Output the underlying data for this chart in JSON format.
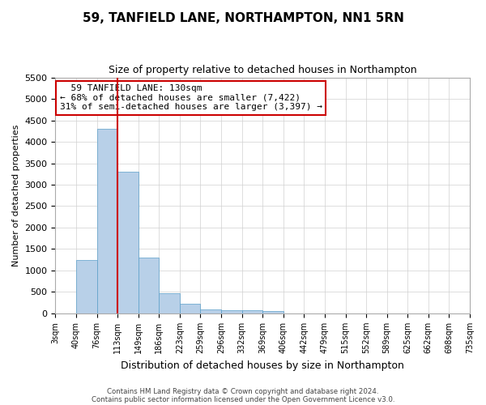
{
  "title": "59, TANFIELD LANE, NORTHAMPTON, NN1 5RN",
  "subtitle": "Size of property relative to detached houses in Northampton",
  "xlabel": "Distribution of detached houses by size in Northampton",
  "ylabel": "Number of detached properties",
  "footer_line1": "Contains HM Land Registry data © Crown copyright and database right 2024.",
  "footer_line2": "Contains public sector information licensed under the Open Government Licence v3.0.",
  "bin_labels": [
    "3sqm",
    "40sqm",
    "76sqm",
    "113sqm",
    "149sqm",
    "186sqm",
    "223sqm",
    "259sqm",
    "296sqm",
    "332sqm",
    "369sqm",
    "406sqm",
    "442sqm",
    "479sqm",
    "515sqm",
    "552sqm",
    "589sqm",
    "625sqm",
    "662sqm",
    "698sqm",
    "735sqm"
  ],
  "bar_values": [
    0,
    1250,
    4300,
    3300,
    1300,
    480,
    220,
    100,
    80,
    70,
    60,
    0,
    0,
    0,
    0,
    0,
    0,
    0,
    0,
    0
  ],
  "bar_color": "#b8d0e8",
  "bar_edge_color": "#5a9ec9",
  "vline_position": 3,
  "vline_color": "#cc0000",
  "ylim": [
    0,
    5500
  ],
  "yticks": [
    0,
    500,
    1000,
    1500,
    2000,
    2500,
    3000,
    3500,
    4000,
    4500,
    5000,
    5500
  ],
  "annotation_title": "59 TANFIELD LANE: 130sqm",
  "annotation_line1": "← 68% of detached houses are smaller (7,422)",
  "annotation_line2": "31% of semi-detached houses are larger (3,397) →",
  "annotation_box_color": "#ffffff",
  "annotation_box_edge": "#cc0000",
  "bg_color": "#ffffff",
  "grid_color": "#d0d0d0",
  "title_fontsize": 11,
  "subtitle_fontsize": 9
}
